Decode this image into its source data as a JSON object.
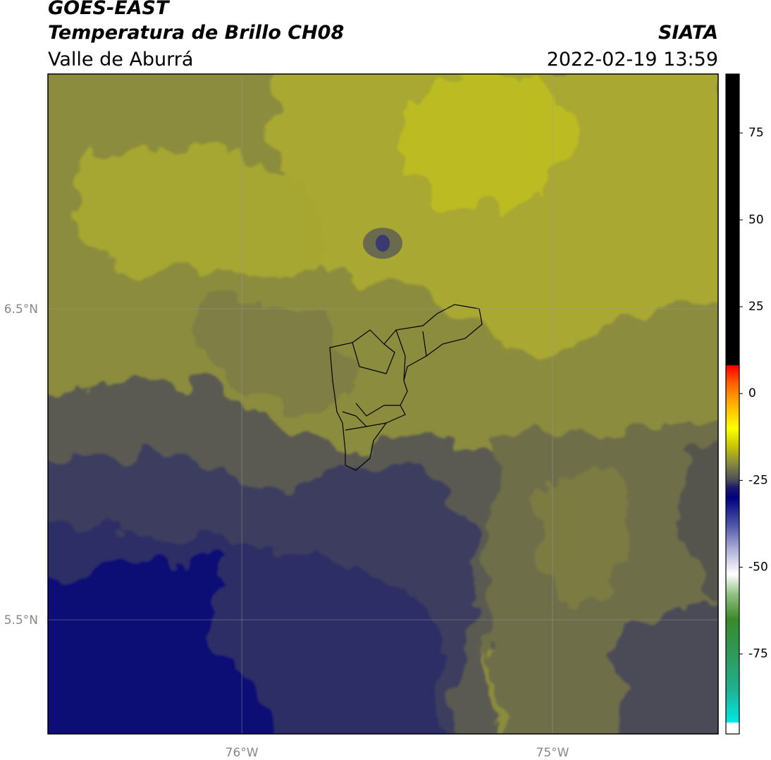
{
  "header": {
    "title": "GOES-EAST",
    "subtitle": "Temperatura de Brillo CH08",
    "region": "Valle de Aburrá",
    "source": "SIATA",
    "datetime": "2022-02-19 13:59"
  },
  "map": {
    "xlim": [
      -76.624,
      -74.467
    ],
    "ylim": [
      5.133,
      7.255
    ],
    "xticks": [
      {
        "value": -76,
        "label": "76°W"
      },
      {
        "value": -75,
        "label": "75°W"
      }
    ],
    "yticks": [
      {
        "value": 6.5,
        "label": "6.5°N"
      },
      {
        "value": 5.5,
        "label": "5.5°N"
      }
    ],
    "grid": true
  },
  "colorbar": {
    "clim": [
      -98,
      92
    ],
    "ticks": [
      -75,
      -50,
      -25,
      0,
      25,
      50,
      75
    ],
    "colormap": [
      {
        "value": -98,
        "color": "#ffffff"
      },
      {
        "value": -95,
        "color": "#ffffff"
      },
      {
        "value": -94.5,
        "color": "#00e8e0"
      },
      {
        "value": -85,
        "color": "#20b090"
      },
      {
        "value": -75,
        "color": "#2e9a5a"
      },
      {
        "value": -65,
        "color": "#3a8a2a"
      },
      {
        "value": -58,
        "color": "#8fbf80"
      },
      {
        "value": -52,
        "color": "#ffffff"
      },
      {
        "value": -45,
        "color": "#b0b0d8"
      },
      {
        "value": -38,
        "color": "#5058a8"
      },
      {
        "value": -30,
        "color": "#000080"
      },
      {
        "value": -27,
        "color": "#1a1a6a"
      },
      {
        "value": -25,
        "color": "#4a4a58"
      },
      {
        "value": -20,
        "color": "#8a8a40"
      },
      {
        "value": -15,
        "color": "#c8c800"
      },
      {
        "value": -10,
        "color": "#ffff00"
      },
      {
        "value": -3,
        "color": "#ffb000"
      },
      {
        "value": 3,
        "color": "#ff6000"
      },
      {
        "value": 8,
        "color": "#ff0000"
      },
      {
        "value": 8.3,
        "color": "#000000"
      },
      {
        "value": 92,
        "color": "#000000"
      }
    ]
  }
}
